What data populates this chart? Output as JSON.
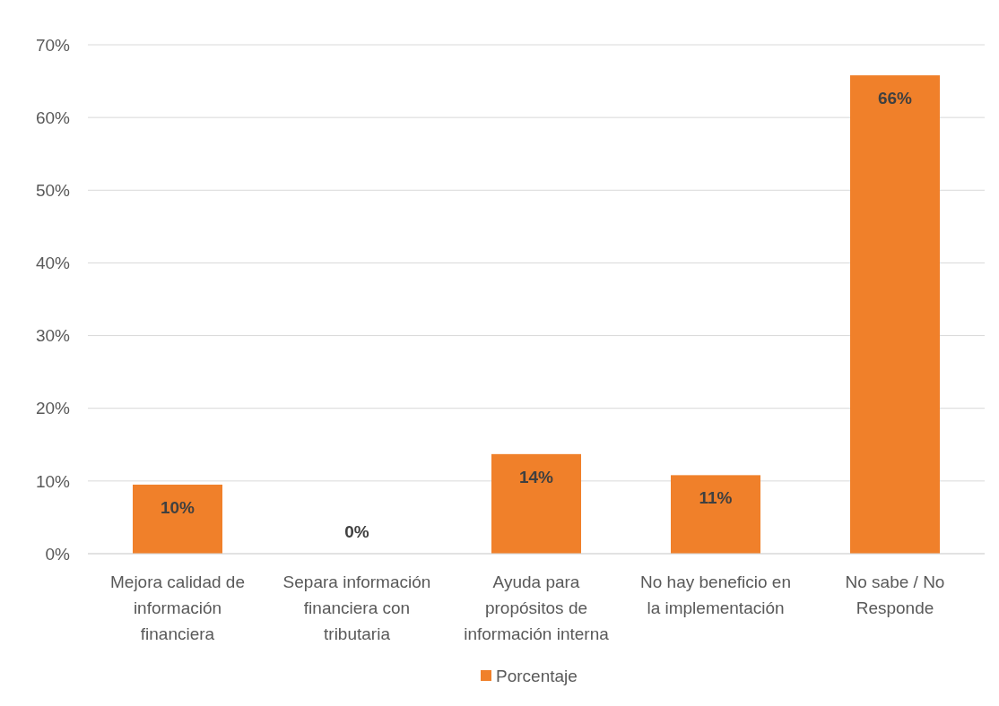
{
  "chart_data": {
    "type": "bar",
    "categories": [
      "Mejora calidad de información financiera",
      "Separa información financiera con tributaria",
      "Ayuda para propósitos de información interna",
      "No hay beneficio en la implementación",
      "No sabe / No Responde"
    ],
    "series": [
      {
        "name": "Porcentaje",
        "color": "#f0802a",
        "values": [
          9.5,
          0,
          13.7,
          10.8,
          65.8
        ],
        "value_labels": [
          "10%",
          "0%",
          "14%",
          "11%",
          "66%"
        ]
      }
    ],
    "ylim": [
      0,
      70
    ],
    "yticks": [
      {
        "value": 0,
        "label": "0%"
      },
      {
        "value": 10,
        "label": "10%"
      },
      {
        "value": 20,
        "label": "20%"
      },
      {
        "value": 30,
        "label": "30%"
      },
      {
        "value": 40,
        "label": "40%"
      },
      {
        "value": 50,
        "label": "50%"
      },
      {
        "value": 60,
        "label": "60%"
      },
      {
        "value": 70,
        "label": "70%"
      }
    ],
    "grid": "y",
    "legend": "bottom"
  }
}
